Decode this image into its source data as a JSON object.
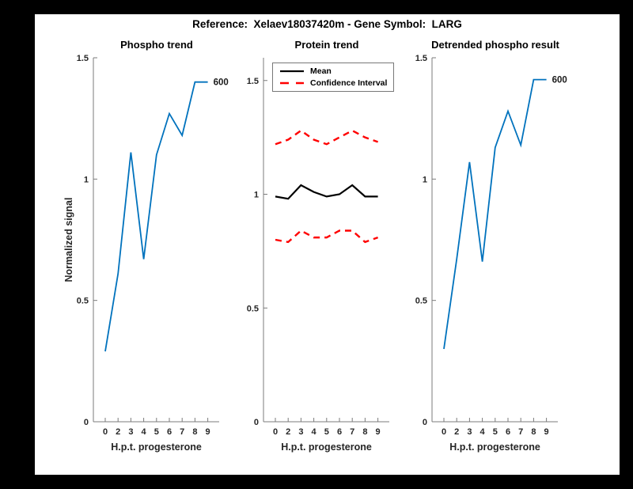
{
  "figure": {
    "title": "Reference:  Xelaev18037420m - Gene Symbol:  LARG",
    "background": "#000000",
    "canvas": "#ffffff"
  },
  "axis": {
    "xlabel": "H.p.t. progesterone",
    "ylabel": "Normalized signal",
    "xticklabels": [
      "0",
      "2",
      "3",
      "4",
      "5",
      "6",
      "7",
      "8",
      "9"
    ],
    "yticks": [
      0,
      0.5,
      1,
      1.5
    ],
    "yticklabels": [
      "0",
      "0.5",
      "1",
      "1.5"
    ]
  },
  "colors": {
    "line_blue": "#0072BD",
    "ci_red": "#ff0000",
    "mean_black": "#000000",
    "axis_gray": "#7b7b7b",
    "label_dark": "#262626"
  },
  "legend": {
    "items": [
      {
        "label": "Mean",
        "color": "#000000",
        "dash": "none"
      },
      {
        "label": "Confidence Interval",
        "color": "#ff0000",
        "dash": "11 9"
      }
    ]
  },
  "chart_data": [
    {
      "type": "line",
      "title": "Phospho trend",
      "xlabel": "H.p.t. progesterone",
      "ylabel": "Normalized signal",
      "x": [
        0,
        2,
        3,
        4,
        5,
        6,
        7,
        8,
        9
      ],
      "x_labels": [
        "0",
        "2",
        "3",
        "4",
        "5",
        "6",
        "7",
        "8",
        "9"
      ],
      "ylim": [
        0,
        1.5
      ],
      "grid": false,
      "series": [
        {
          "name": "phospho-signal",
          "color": "#0072BD",
          "dash": false,
          "width": 1.8,
          "values": [
            0.29,
            0.61,
            1.11,
            0.67,
            1.1,
            1.27,
            1.18,
            1.4,
            1.4
          ]
        }
      ],
      "end_label": "600"
    },
    {
      "type": "line",
      "title": "Protein trend",
      "xlabel": "H.p.t. progesterone",
      "x": [
        0,
        2,
        3,
        4,
        5,
        6,
        7,
        8,
        9
      ],
      "x_labels": [
        "0",
        "2",
        "3",
        "4",
        "5",
        "6",
        "7",
        "8",
        "9"
      ],
      "ylim": [
        0,
        1.6
      ],
      "grid": false,
      "legend_position": "top-left",
      "series": [
        {
          "name": "mean",
          "color": "#000000",
          "dash": false,
          "width": 2.2,
          "values": [
            0.99,
            0.98,
            1.04,
            1.01,
            0.99,
            1.0,
            1.04,
            0.99,
            0.99
          ]
        },
        {
          "name": "ci-upper",
          "color": "#ff0000",
          "dash": true,
          "width": 2.4,
          "values": [
            1.22,
            1.24,
            1.28,
            1.24,
            1.22,
            1.25,
            1.28,
            1.25,
            1.23
          ]
        },
        {
          "name": "ci-lower",
          "color": "#ff0000",
          "dash": true,
          "width": 2.4,
          "values": [
            0.8,
            0.79,
            0.84,
            0.81,
            0.81,
            0.84,
            0.84,
            0.79,
            0.81
          ]
        }
      ]
    },
    {
      "type": "line",
      "title": "Detrended phospho result",
      "xlabel": "H.p.t. progesterone",
      "x": [
        0,
        2,
        3,
        4,
        5,
        6,
        7,
        8,
        9
      ],
      "x_labels": [
        "0",
        "2",
        "3",
        "4",
        "5",
        "6",
        "7",
        "8",
        "9"
      ],
      "ylim": [
        0,
        1.5
      ],
      "grid": false,
      "series": [
        {
          "name": "detrended-phospho",
          "color": "#0072BD",
          "dash": false,
          "width": 1.8,
          "values": [
            0.3,
            0.67,
            1.07,
            0.66,
            1.13,
            1.28,
            1.14,
            1.41,
            1.41
          ]
        }
      ],
      "end_label": "600"
    }
  ]
}
